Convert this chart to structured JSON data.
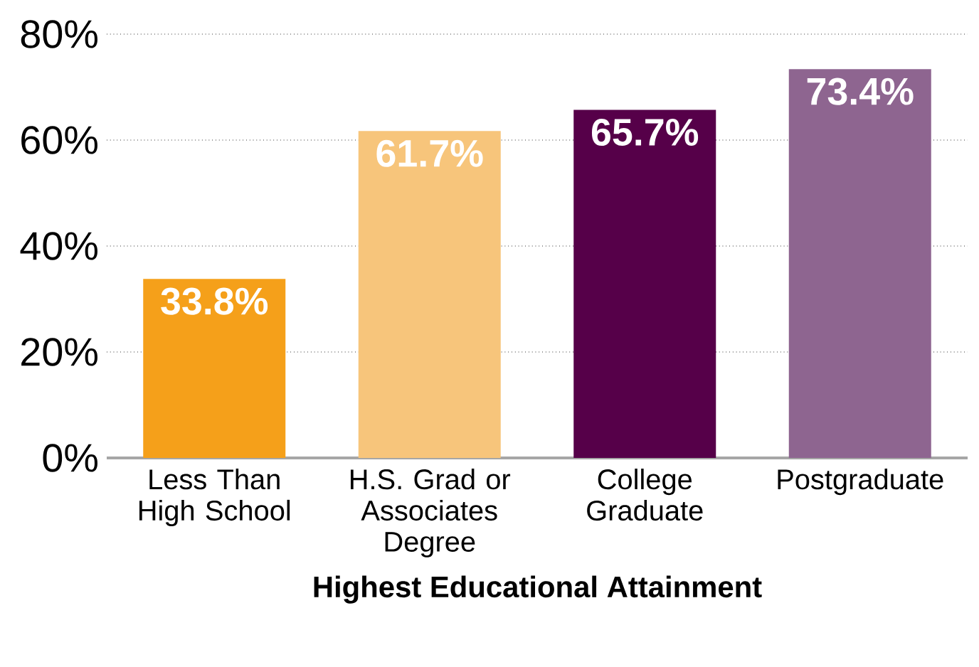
{
  "chart_data": {
    "type": "bar",
    "xlabel": "Highest Educational Attainment",
    "categories": [
      "Less Than High School",
      "H.S. Grad or Associates Degree",
      "College Graduate",
      "Postgraduate"
    ],
    "values": [
      33.8,
      61.7,
      65.7,
      73.4
    ],
    "colors": [
      "#f5a01a",
      "#f7c57b",
      "#560049",
      "#8e6590"
    ],
    "value_labels": [
      "33.8%",
      "61.7%",
      "65.7%",
      "73.4%"
    ],
    "ylim": [
      0,
      80
    ],
    "yticks": [
      {
        "value": 0,
        "label": "0%"
      },
      {
        "value": 20,
        "label": "20%"
      },
      {
        "value": 40,
        "label": "40%"
      },
      {
        "value": 60,
        "label": "60%"
      },
      {
        "value": 80,
        "label": "80%"
      }
    ],
    "grid": "y"
  }
}
